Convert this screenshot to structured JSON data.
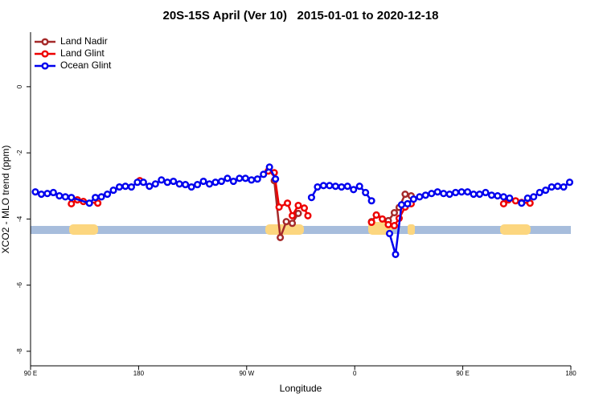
{
  "chart_data": {
    "type": "line",
    "title": "20S-15S April (Ver 10)   2015-01-01 to 2020-12-18",
    "xlabel": "Longitude",
    "ylabel": "XCO2 - MLO trend (ppm)",
    "xlim": [
      90,
      540
    ],
    "ylim": [
      -8.44,
      1.65
    ],
    "xticks": [
      {
        "value": 90,
        "label": "90 E"
      },
      180,
      {
        "value": 270,
        "label": "90 W"
      },
      {
        "value": 360,
        "label": "0"
      },
      {
        "value": 450,
        "label": "90 E"
      },
      {
        "value": 540,
        "label": "180"
      }
    ],
    "yticks": [
      0,
      -2,
      -4,
      -6,
      -8
    ],
    "legend": "top-left",
    "series": [
      {
        "name": "Land Nadir",
        "color": "#a52a2a",
        "x": [
          293,
          298,
          303,
          308,
          313,
          340,
          374,
          378,
          388,
          393,
          397,
          402,
          407
        ],
        "values": [
          -2.84,
          -4.56,
          -4.08,
          -4.13,
          -3.83,
          null,
          -4.08,
          -3.88,
          -4.05,
          -3.81,
          -3.65,
          -3.25,
          -3.3
        ]
      },
      {
        "name": "Land Glint",
        "color": "#ee0000",
        "x": [
          124,
          129,
          134,
          146,
          160,
          181,
          230,
          288,
          293,
          297,
          304,
          308,
          313,
          318,
          321,
          350,
          374,
          378,
          383,
          388,
          393,
          397,
          402,
          407,
          440,
          484,
          488,
          494,
          499,
          506
        ],
        "values": [
          -3.54,
          -3.42,
          -3.47,
          -3.52,
          null,
          -2.84,
          null,
          -2.55,
          -2.6,
          -3.64,
          -3.52,
          -3.9,
          -3.59,
          -3.67,
          -3.9,
          null,
          -4.1,
          -3.88,
          -4.0,
          -4.17,
          -4.2,
          -3.98,
          -3.64,
          -3.54,
          null,
          -3.54,
          -3.42,
          -3.45,
          -3.5,
          -3.52
        ]
      },
      {
        "name": "Ocean Glint",
        "color": "#0000ee",
        "x": [
          94,
          99,
          104,
          109,
          114,
          119,
          124,
          139,
          144,
          149,
          154,
          159,
          164,
          169,
          174,
          179,
          184,
          189,
          194,
          199,
          204,
          209,
          214,
          219,
          224,
          229,
          234,
          239,
          244,
          249,
          254,
          259,
          264,
          269,
          274,
          279,
          284,
          289,
          294,
          299,
          304,
          324,
          329,
          334,
          339,
          344,
          349,
          354,
          359,
          364,
          369,
          374,
          379,
          389,
          394,
          399,
          404,
          409,
          414,
          419,
          424,
          429,
          434,
          439,
          444,
          449,
          454,
          459,
          464,
          469,
          474,
          479,
          484,
          489,
          494,
          499,
          504,
          509,
          514,
          519,
          524,
          529,
          534,
          539
        ],
        "values": [
          -3.18,
          -3.25,
          -3.23,
          -3.2,
          -3.3,
          -3.33,
          -3.35,
          -3.52,
          -3.35,
          -3.33,
          -3.25,
          -3.13,
          -3.03,
          -3.01,
          -3.03,
          -2.89,
          -2.89,
          -3.01,
          -2.94,
          -2.82,
          -2.89,
          -2.86,
          -2.94,
          -2.96,
          -3.03,
          -2.96,
          -2.86,
          -2.94,
          -2.89,
          -2.86,
          -2.77,
          -2.86,
          -2.77,
          -2.77,
          -2.82,
          -2.79,
          -2.65,
          -2.43,
          -2.79,
          null,
          null,
          -3.35,
          -3.03,
          -2.99,
          -2.99,
          -3.01,
          -3.03,
          -3.01,
          -3.11,
          -3.01,
          -3.2,
          -3.45,
          null,
          -4.44,
          -5.07,
          -3.57,
          -3.54,
          -3.4,
          -3.33,
          -3.28,
          -3.23,
          -3.18,
          -3.23,
          -3.25,
          -3.2,
          -3.18,
          -3.18,
          -3.25,
          -3.25,
          -3.2,
          -3.28,
          -3.3,
          -3.33,
          -3.37,
          null,
          -3.52,
          -3.37,
          -3.33,
          -3.2,
          -3.13,
          -3.03,
          -3.01,
          -3.03,
          -2.89
        ]
      }
    ]
  }
}
